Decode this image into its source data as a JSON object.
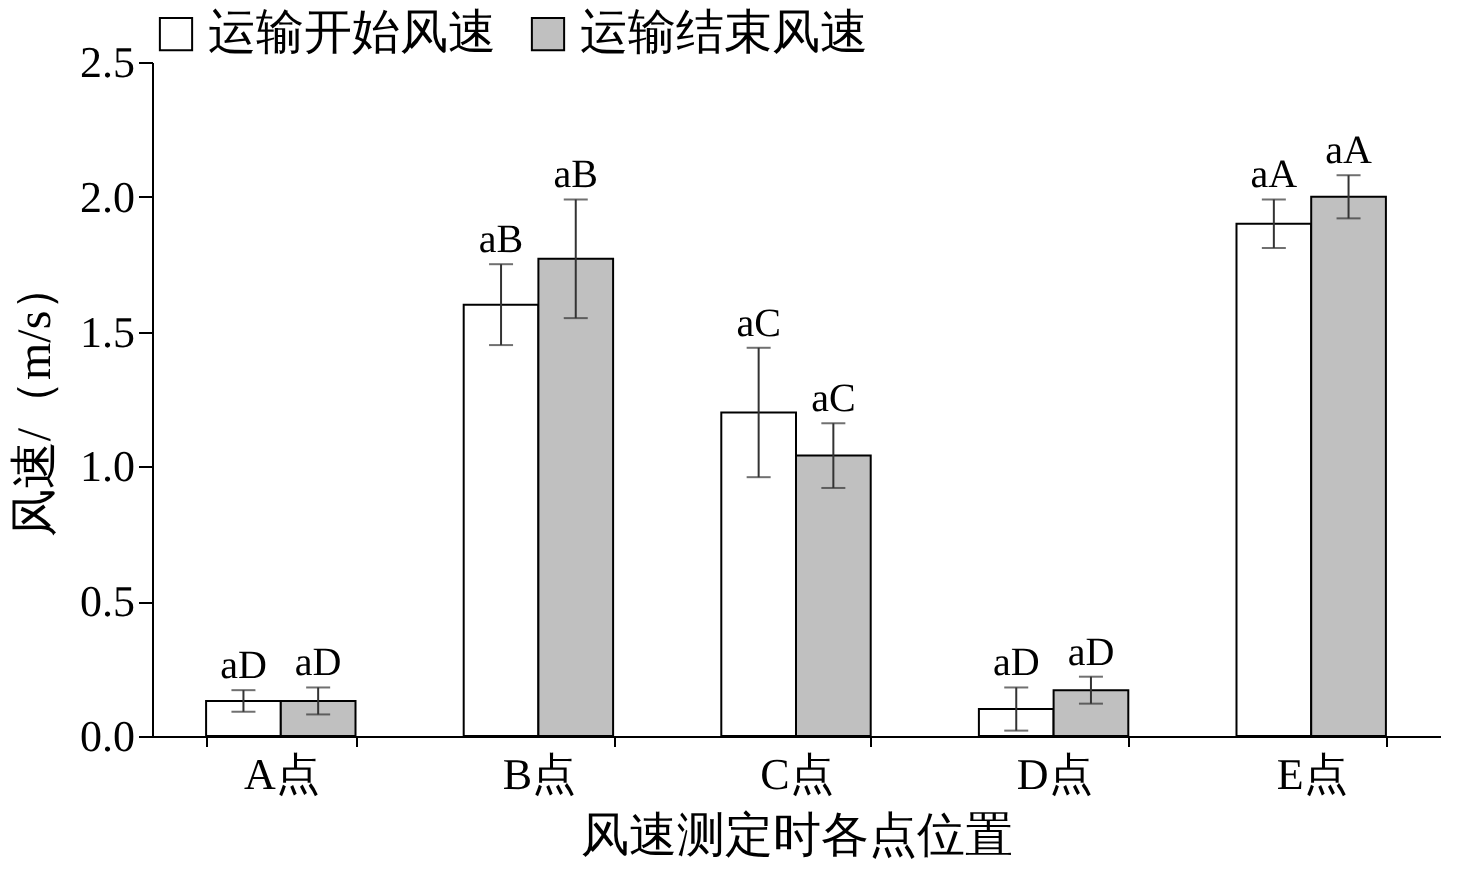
{
  "chart_data": {
    "type": "bar",
    "xlabel": "风速测定时各点位置",
    "ylabel": "风速/（m/s）",
    "categories": [
      "A点",
      "B点",
      "C点",
      "D点",
      "E点"
    ],
    "series": [
      {
        "name": "运输开始风速",
        "color": "#ffffff",
        "values": [
          0.13,
          1.6,
          1.2,
          0.1,
          1.9
        ],
        "errors": [
          0.04,
          0.15,
          0.24,
          0.08,
          0.09
        ],
        "value_labels": [
          "aD",
          "aB",
          "aC",
          "aD",
          "aA"
        ]
      },
      {
        "name": "运输结束风速",
        "color": "#c0c0c0",
        "values": [
          0.13,
          1.77,
          1.04,
          0.17,
          2.0
        ],
        "errors": [
          0.05,
          0.22,
          0.12,
          0.05,
          0.08
        ],
        "value_labels": [
          "aD",
          "aB",
          "aC",
          "aD",
          "aA"
        ]
      }
    ],
    "ylim": [
      0,
      2.5
    ],
    "yticks": [
      {
        "value": 0,
        "label": "0.0"
      },
      {
        "value": 0.5,
        "label": "0.5"
      },
      {
        "value": 1,
        "label": "1.0"
      },
      {
        "value": 1.5,
        "label": "1.5"
      },
      {
        "value": 2,
        "label": "2.0"
      },
      {
        "value": 2.5,
        "label": "2.5"
      }
    ],
    "legend": "top",
    "grid": false
  }
}
